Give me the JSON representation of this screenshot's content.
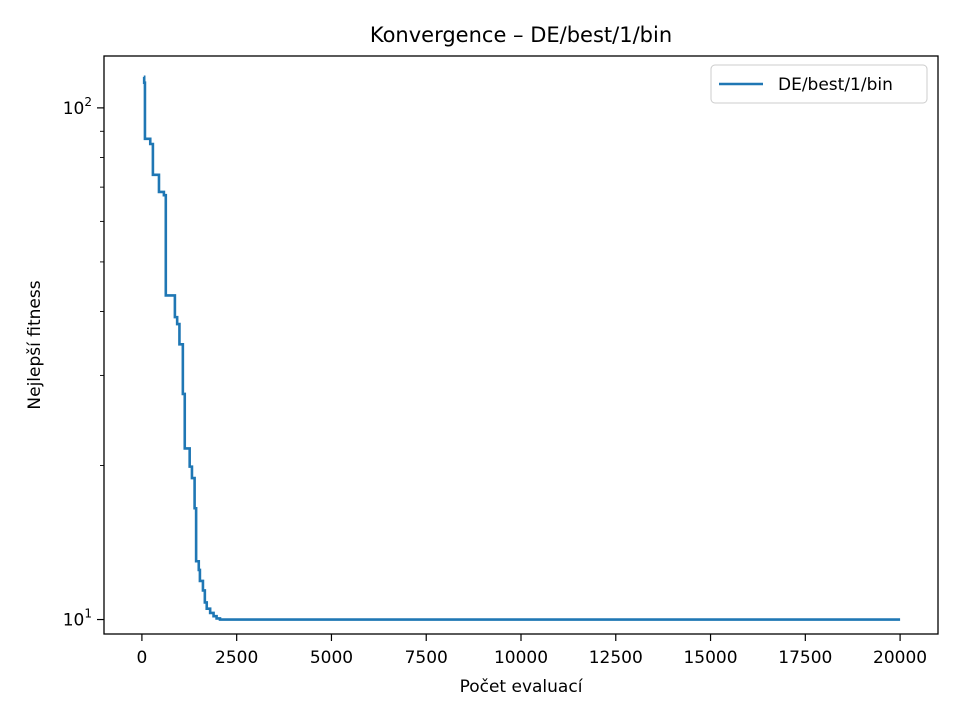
{
  "chart_data": {
    "type": "line",
    "title": "Konvergence – DE/best/1/bin",
    "xlabel": "Počet evaluací",
    "ylabel": "Nejlepší fitness",
    "yscale": "log",
    "xlim": [
      -1000,
      21000
    ],
    "ylim": [
      9.37,
      126.3
    ],
    "grid": false,
    "legend_position": "top-right",
    "x_ticks": [
      0,
      2500,
      5000,
      7500,
      10000,
      12500,
      15000,
      17500,
      20000
    ],
    "x_tick_labels": [
      "0",
      "2500",
      "5000",
      "7500",
      "10000",
      "12500",
      "15000",
      "17500",
      "20000"
    ],
    "y_major_ticks": [
      10,
      100
    ],
    "y_major_tick_labels": [
      {
        "base": "10",
        "exp": "1"
      },
      {
        "base": "10",
        "exp": "2"
      }
    ],
    "y_minor_ticks": [
      20,
      30,
      40,
      50,
      60,
      70,
      80,
      90
    ],
    "series": [
      {
        "name": "DE/best/1/bin",
        "color": "#1f77b4",
        "step": "post",
        "points": [
          [
            50,
            115.0
          ],
          [
            60,
            112.0
          ],
          [
            80,
            87.0
          ],
          [
            200,
            87.0
          ],
          [
            220,
            85.0
          ],
          [
            280,
            85.0
          ],
          [
            290,
            74.0
          ],
          [
            430,
            74.0
          ],
          [
            450,
            68.5
          ],
          [
            560,
            68.5
          ],
          [
            580,
            67.5
          ],
          [
            620,
            67.5
          ],
          [
            630,
            43.0
          ],
          [
            850,
            43.0
          ],
          [
            870,
            39.0
          ],
          [
            920,
            39.0
          ],
          [
            930,
            37.8
          ],
          [
            980,
            37.8
          ],
          [
            990,
            34.5
          ],
          [
            1070,
            34.5
          ],
          [
            1080,
            27.6
          ],
          [
            1120,
            27.6
          ],
          [
            1130,
            21.6
          ],
          [
            1250,
            21.6
          ],
          [
            1260,
            19.9
          ],
          [
            1310,
            19.9
          ],
          [
            1320,
            18.9
          ],
          [
            1380,
            18.9
          ],
          [
            1390,
            16.5
          ],
          [
            1420,
            16.5
          ],
          [
            1430,
            13.0
          ],
          [
            1490,
            13.0
          ],
          [
            1500,
            12.5
          ],
          [
            1520,
            12.5
          ],
          [
            1530,
            11.9
          ],
          [
            1600,
            11.9
          ],
          [
            1610,
            11.4
          ],
          [
            1650,
            11.4
          ],
          [
            1660,
            10.8
          ],
          [
            1700,
            10.8
          ],
          [
            1710,
            10.5
          ],
          [
            1790,
            10.5
          ],
          [
            1800,
            10.3
          ],
          [
            1880,
            10.3
          ],
          [
            1890,
            10.15
          ],
          [
            1960,
            10.15
          ],
          [
            1970,
            10.05
          ],
          [
            2050,
            10.05
          ],
          [
            2060,
            10.0
          ],
          [
            20000,
            10.0
          ]
        ]
      }
    ]
  }
}
